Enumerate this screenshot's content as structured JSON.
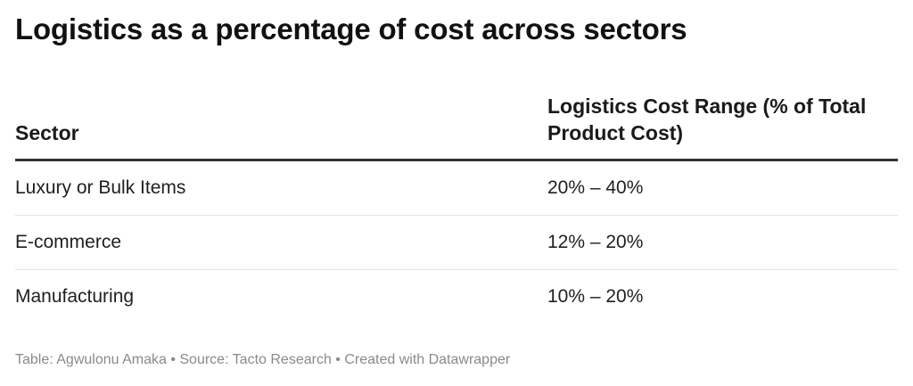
{
  "title": "Logistics as a percentage of cost across sectors",
  "chart_data": {
    "type": "table",
    "title": "Logistics as a percentage of cost across sectors",
    "columns": [
      "Sector",
      "Logistics Cost Range (% of Total Product Cost)"
    ],
    "rows": [
      {
        "sector": "Luxury or Bulk Items",
        "range": "20% – 40%"
      },
      {
        "sector": "E-commerce",
        "range": "12% – 20%"
      },
      {
        "sector": "Manufacturing",
        "range": "10% – 20%"
      }
    ]
  },
  "footer": {
    "text": "Table: Agwulonu Amaka • Source: Tacto Research • Created with Datawrapper"
  }
}
